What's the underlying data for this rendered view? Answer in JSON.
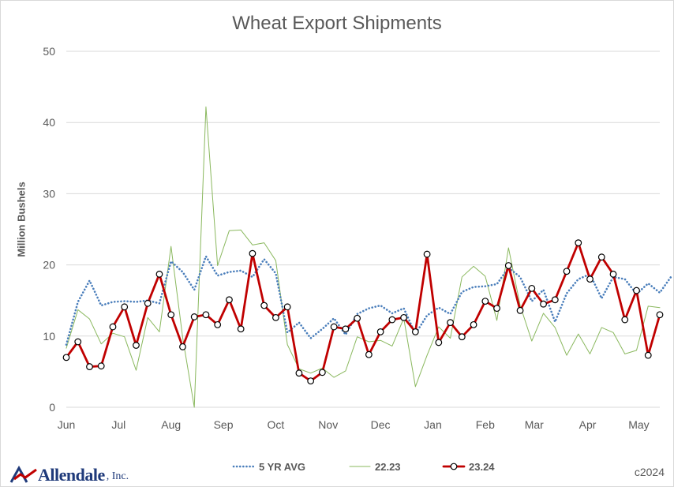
{
  "chart_data": {
    "type": "line",
    "title": "Wheat Export Shipments",
    "ylabel": "Million Bushels",
    "xlabel": "",
    "ylim": [
      0,
      50
    ],
    "yticks": [
      0,
      10,
      20,
      30,
      40,
      50
    ],
    "grid": true,
    "legend_position": "bottom",
    "month_labels": [
      {
        "label": "Jun",
        "week": 0
      },
      {
        "label": "Jul",
        "week": 4.5
      },
      {
        "label": "Aug",
        "week": 9
      },
      {
        "label": "Sep",
        "week": 13.5
      },
      {
        "label": "Oct",
        "week": 18
      },
      {
        "label": "Nov",
        "week": 22.5
      },
      {
        "label": "Dec",
        "week": 27
      },
      {
        "label": "Jan",
        "week": 31.5
      },
      {
        "label": "Feb",
        "week": 36
      },
      {
        "label": "Mar",
        "week": 40.2
      },
      {
        "label": "Apr",
        "week": 44.8
      },
      {
        "label": "May",
        "week": 49.2
      }
    ],
    "series": [
      {
        "name": "5 YR AVG",
        "color": "#4a7ebb",
        "style": "dotted",
        "values": [
          8.8,
          14.8,
          17.8,
          14.3,
          14.8,
          14.9,
          14.8,
          15.0,
          14.6,
          20.5,
          19.0,
          16.5,
          21.2,
          18.5,
          19.0,
          19.2,
          18.3,
          20.8,
          18.8,
          10.5,
          11.9,
          9.7,
          11.0,
          12.5,
          10.2,
          13.1,
          13.9,
          14.3,
          13.2,
          13.9,
          10.3,
          12.9,
          14.0,
          13.1,
          16.2,
          16.9,
          17.0,
          17.3,
          19.6,
          18.3,
          14.9,
          16.5,
          12.0,
          16.0,
          18.0,
          18.7,
          15.3,
          18.3,
          18.0,
          15.9,
          17.4,
          16.1,
          18.4
        ]
      },
      {
        "name": "22.23",
        "color": "#8ab85e",
        "style": "solid",
        "values": [
          8.3,
          13.7,
          12.4,
          8.9,
          10.4,
          9.9,
          5.2,
          12.6,
          10.6,
          22.6,
          9.8,
          0.0,
          42.2,
          19.9,
          24.8,
          24.9,
          22.8,
          23.1,
          20.6,
          8.8,
          5.4,
          4.8,
          5.5,
          4.2,
          5.1,
          9.9,
          9.2,
          9.4,
          8.6,
          12.5,
          2.9,
          7.3,
          11.3,
          9.7,
          18.3,
          19.8,
          18.4,
          12.2,
          22.4,
          14.3,
          9.3,
          13.2,
          11.2,
          7.3,
          10.3,
          7.5,
          11.2,
          10.5,
          7.5,
          8.0,
          14.2,
          14.0
        ]
      },
      {
        "name": "23.24",
        "color": "#c00000",
        "style": "solid-markers",
        "values": [
          7.0,
          9.2,
          5.7,
          5.8,
          11.3,
          14.1,
          8.7,
          14.6,
          18.7,
          13.0,
          8.5,
          12.7,
          13.0,
          11.6,
          15.1,
          11.0,
          21.6,
          14.3,
          12.6,
          14.1,
          4.8,
          3.7,
          4.9,
          11.3,
          11.0,
          12.5,
          7.4,
          10.6,
          12.3,
          12.6,
          10.6,
          21.5,
          9.1,
          11.9,
          9.9,
          11.6,
          14.9,
          13.9,
          19.9,
          13.6,
          16.7,
          14.5,
          15.1,
          19.1,
          23.1,
          18.0,
          21.1,
          18.7,
          12.3,
          16.4,
          7.3,
          13.0
        ]
      }
    ]
  },
  "branding": {
    "logo_name": "Allendale",
    "logo_suffix": ", Inc.",
    "copyright": "c2024"
  }
}
